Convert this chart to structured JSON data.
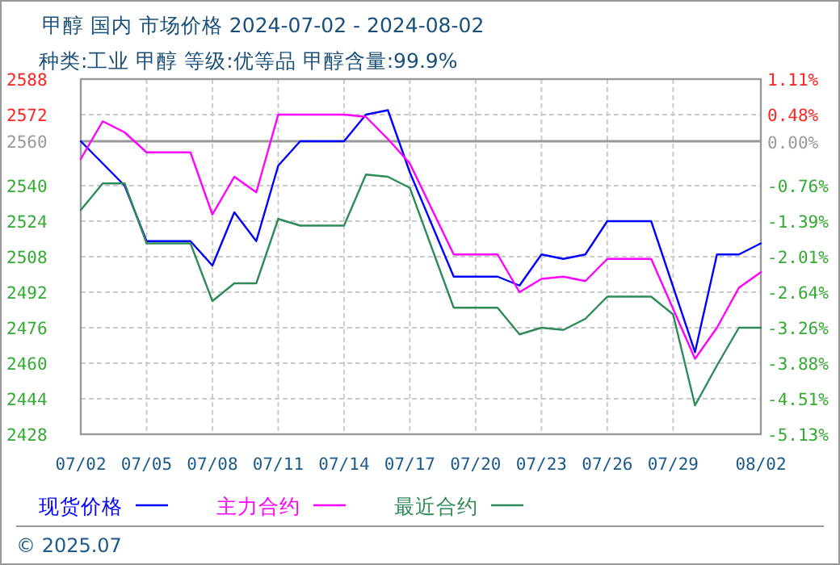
{
  "chart_data": {
    "type": "line",
    "title": "甲醇 国内 市场价格 2024-07-02 - 2024-08-02",
    "subtitle": "种类:工业 甲醇 等级:优等品 甲醇含量:99.9%",
    "annotations": [
      "© 2025.07"
    ],
    "xlim": [
      "2024-07-02",
      "2024-08-02"
    ],
    "xticks": [
      {
        "value": "2024-07-02",
        "label": "07/02"
      },
      {
        "value": "2024-07-05",
        "label": "07/05"
      },
      {
        "value": "2024-07-08",
        "label": "07/08"
      },
      {
        "value": "2024-07-11",
        "label": "07/11"
      },
      {
        "value": "2024-07-14",
        "label": "07/14"
      },
      {
        "value": "2024-07-17",
        "label": "07/17"
      },
      {
        "value": "2024-07-20",
        "label": "07/20"
      },
      {
        "value": "2024-07-23",
        "label": "07/23"
      },
      {
        "value": "2024-07-26",
        "label": "07/26"
      },
      {
        "value": "2024-07-29",
        "label": "07/29"
      },
      {
        "value": "2024-08-02",
        "label": "08/02"
      }
    ],
    "ylim": [
      2428,
      2588
    ],
    "yticks": [
      2588,
      2572,
      2560,
      2540,
      2524,
      2508,
      2492,
      2476,
      2460,
      2444,
      2428
    ],
    "y2lim": [
      -5.13,
      1.11
    ],
    "y2ticks": [
      {
        "value": 1.11,
        "label": "1.11%"
      },
      {
        "value": 0.48,
        "label": "0.48%"
      },
      {
        "value": 0,
        "label": "0.00%"
      },
      {
        "value": -0.76,
        "label": "-0.76%"
      },
      {
        "value": -1.39,
        "label": "-1.39%"
      },
      {
        "value": -2.01,
        "label": "-2.01%"
      },
      {
        "value": -2.64,
        "label": "-2.64%"
      },
      {
        "value": -3.26,
        "label": "-3.26%"
      },
      {
        "value": -3.88,
        "label": "-3.88%"
      },
      {
        "value": -4.51,
        "label": "-4.51%"
      },
      {
        "value": -5.13,
        "label": "-5.13%"
      }
    ],
    "ref_lines": [
      {
        "axis": "y",
        "value": 2560,
        "color": "#999999"
      }
    ],
    "grid": true,
    "legend": "bottom",
    "line_style": "solid",
    "marker": "none",
    "series": [
      {
        "name": "现货价格",
        "color": "#0000ff",
        "x": [
          "2024-07-02",
          "2024-07-03",
          "2024-07-04",
          "2024-07-05",
          "2024-07-07",
          "2024-07-08",
          "2024-07-09",
          "2024-07-10",
          "2024-07-11",
          "2024-07-12",
          "2024-07-14",
          "2024-07-15",
          "2024-07-16",
          "2024-07-17",
          "2024-07-19",
          "2024-07-21",
          "2024-07-22",
          "2024-07-23",
          "2024-07-24",
          "2024-07-25",
          "2024-07-26",
          "2024-07-28",
          "2024-07-30",
          "2024-07-31",
          "2024-08-01",
          "2024-08-02"
        ],
        "values": [
          2560,
          2550,
          2540,
          2515,
          2515,
          2504,
          2528,
          2515,
          2549,
          2560,
          2560,
          2572,
          2574,
          2546,
          2499,
          2499,
          2495,
          2509,
          2507,
          2509,
          2524,
          2524,
          2465,
          2509,
          2509,
          2514
        ]
      },
      {
        "name": "主力合约",
        "color": "#ff00ff",
        "x": [
          "2024-07-02",
          "2024-07-03",
          "2024-07-04",
          "2024-07-05",
          "2024-07-07",
          "2024-07-08",
          "2024-07-09",
          "2024-07-10",
          "2024-07-11",
          "2024-07-14",
          "2024-07-15",
          "2024-07-16",
          "2024-07-17",
          "2024-07-19",
          "2024-07-21",
          "2024-07-22",
          "2024-07-23",
          "2024-07-24",
          "2024-07-25",
          "2024-07-26",
          "2024-07-28",
          "2024-07-30",
          "2024-07-31",
          "2024-08-01",
          "2024-08-02"
        ],
        "values": [
          2552,
          2569,
          2564,
          2555,
          2555,
          2527,
          2544,
          2537,
          2572,
          2572,
          2571,
          2561,
          2550,
          2509,
          2509,
          2492,
          2498,
          2499,
          2497,
          2507,
          2507,
          2462,
          2476,
          2494,
          2501
        ]
      },
      {
        "name": "最近合约",
        "color": "#2e8b57",
        "x": [
          "2024-07-02",
          "2024-07-03",
          "2024-07-04",
          "2024-07-05",
          "2024-07-07",
          "2024-07-08",
          "2024-07-09",
          "2024-07-10",
          "2024-07-11",
          "2024-07-12",
          "2024-07-14",
          "2024-07-15",
          "2024-07-16",
          "2024-07-17",
          "2024-07-19",
          "2024-07-21",
          "2024-07-22",
          "2024-07-23",
          "2024-07-24",
          "2024-07-25",
          "2024-07-26",
          "2024-07-28",
          "2024-07-29",
          "2024-07-30",
          "2024-07-31",
          "2024-08-01",
          "2024-08-02"
        ],
        "values": [
          2529,
          2541,
          2541,
          2514,
          2514,
          2488,
          2496,
          2496,
          2525,
          2522,
          2522,
          2545,
          2544,
          2539,
          2485,
          2485,
          2473,
          2476,
          2475,
          2480,
          2490,
          2490,
          2482,
          2441,
          2459,
          2476,
          2476
        ]
      }
    ]
  }
}
